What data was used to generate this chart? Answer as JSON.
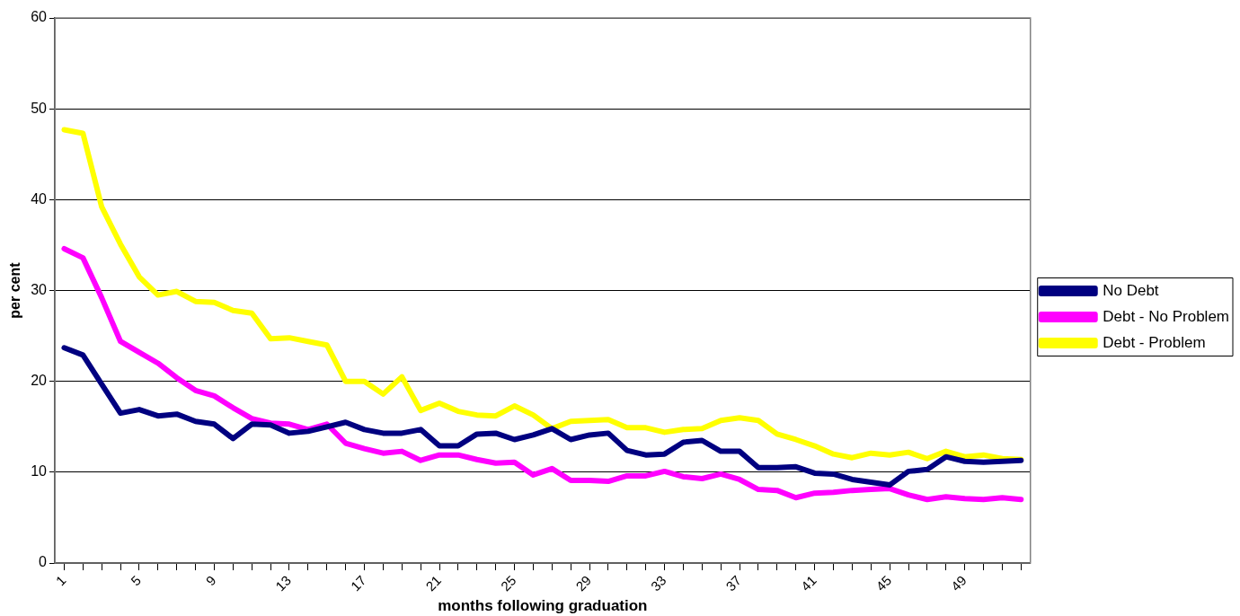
{
  "chart_data": {
    "type": "line",
    "xlabel": "months following graduation",
    "ylabel": "per cent",
    "categories": [
      "1",
      null,
      null,
      null,
      "5",
      null,
      null,
      null,
      "9",
      null,
      null,
      null,
      "13",
      null,
      null,
      null,
      "17",
      null,
      null,
      null,
      "21",
      null,
      null,
      null,
      "25",
      null,
      null,
      null,
      "29",
      null,
      null,
      null,
      "33",
      null,
      null,
      null,
      "37",
      null,
      null,
      null,
      "41",
      null,
      null,
      null,
      "45",
      null,
      null,
      null,
      "49",
      null,
      null,
      null
    ],
    "series": [
      {
        "name": "No Debt",
        "color": "#000080",
        "values": [
          23.7,
          22.9,
          19.7,
          16.5,
          16.9,
          16.2,
          16.4,
          15.6,
          15.3,
          13.7,
          15.3,
          15.2,
          14.3,
          14.5,
          15.0,
          15.5,
          14.7,
          14.3,
          14.3,
          14.7,
          12.9,
          12.9,
          14.2,
          14.3,
          13.6,
          14.1,
          14.8,
          13.6,
          14.1,
          14.3,
          12.4,
          11.9,
          12.0,
          13.3,
          13.5,
          12.3,
          12.3,
          10.5,
          10.5,
          10.6,
          9.9,
          9.8,
          9.2,
          8.9,
          8.6,
          10.1,
          10.3,
          11.7,
          11.2,
          11.1,
          11.2,
          11.3
        ]
      },
      {
        "name": "Debt - No Problem",
        "color": "#ff00ff",
        "values": [
          34.6,
          33.6,
          29.2,
          24.4,
          23.2,
          22.0,
          20.4,
          19.0,
          18.4,
          17.1,
          15.9,
          15.4,
          15.3,
          14.7,
          15.3,
          13.2,
          12.6,
          12.1,
          12.3,
          11.3,
          11.9,
          11.9,
          11.4,
          11.0,
          11.1,
          9.7,
          10.4,
          9.1,
          9.1,
          9.0,
          9.6,
          9.6,
          10.1,
          9.5,
          9.3,
          9.8,
          9.2,
          8.1,
          8.0,
          7.2,
          7.7,
          7.8,
          8.0,
          8.1,
          8.2,
          7.5,
          7.0,
          7.3,
          7.1,
          7.0,
          7.2,
          7.0
        ]
      },
      {
        "name": "Debt - Problem",
        "color": "#ffff00",
        "values": [
          47.7,
          47.3,
          39.2,
          35.1,
          31.5,
          29.5,
          29.9,
          28.8,
          28.7,
          27.8,
          27.5,
          24.7,
          24.8,
          24.4,
          24.0,
          20.0,
          20.0,
          18.6,
          20.5,
          16.8,
          17.6,
          16.7,
          16.3,
          16.2,
          17.3,
          16.3,
          14.8,
          15.6,
          15.7,
          15.8,
          14.9,
          14.9,
          14.4,
          14.7,
          14.8,
          15.7,
          16.0,
          15.7,
          14.2,
          13.6,
          12.9,
          12.0,
          11.6,
          12.1,
          11.9,
          12.2,
          11.5,
          12.3,
          11.7,
          11.9,
          11.5,
          11.4
        ]
      }
    ],
    "ylim": [
      0,
      60
    ],
    "yticks": [
      0,
      10,
      20,
      30,
      40,
      50,
      60
    ],
    "grid": "y",
    "legend": "right",
    "marker": "none",
    "line_style": "solid"
  }
}
